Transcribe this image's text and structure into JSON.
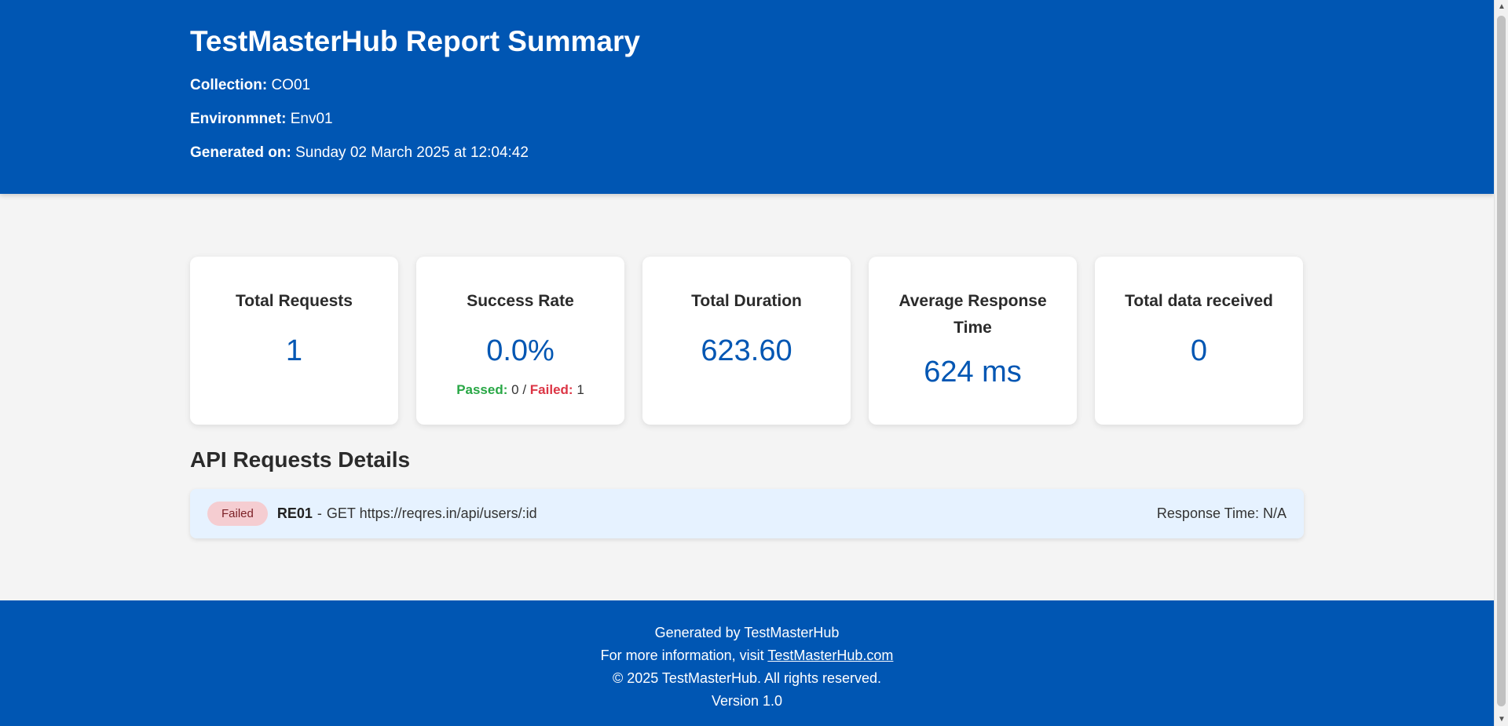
{
  "header": {
    "title": "TestMasterHub Report Summary",
    "collection_label": "Collection:",
    "collection_value": "CO01",
    "environment_label": "Environmnet:",
    "environment_value": "Env01",
    "generated_label": "Generated on:",
    "generated_value": "Sunday 02 March 2025 at 12:04:42"
  },
  "cards": {
    "total_requests": {
      "title": "Total Requests",
      "value": "1"
    },
    "success_rate": {
      "title": "Success Rate",
      "value": "0.0%",
      "passed_label": "Passed:",
      "passed_value": "0",
      "separator": "/",
      "failed_label": "Failed:",
      "failed_value": "1"
    },
    "total_duration": {
      "title": "Total Duration",
      "value": "623.60"
    },
    "avg_response": {
      "title": "Average Response Time",
      "value": "624 ms"
    },
    "total_data": {
      "title": "Total data received",
      "value": "0"
    }
  },
  "api": {
    "section_title": "API Requests Details",
    "requests": [
      {
        "status": "Failed",
        "id": "RE01",
        "separator": "-",
        "method_url": "GET https://reqres.in/api/users/:id",
        "response_time": "Response Time: N/A"
      }
    ]
  },
  "footer": {
    "line1": "Generated by TestMasterHub",
    "line2_prefix": "For more information, visit",
    "line2_link": "TestMasterHub.com",
    "line3": "© 2025 TestMasterHub. All rights reserved.",
    "line4": "Version 1.0"
  },
  "colors": {
    "brand": "#0056b3",
    "passed": "#28a745",
    "failed": "#dc3545",
    "row_bg": "#e6f2ff",
    "badge_bg": "#f5cdd1"
  },
  "icons": {
    "scroll_up": "scroll-up-arrow-icon",
    "scroll_down": "scroll-down-arrow-icon"
  }
}
